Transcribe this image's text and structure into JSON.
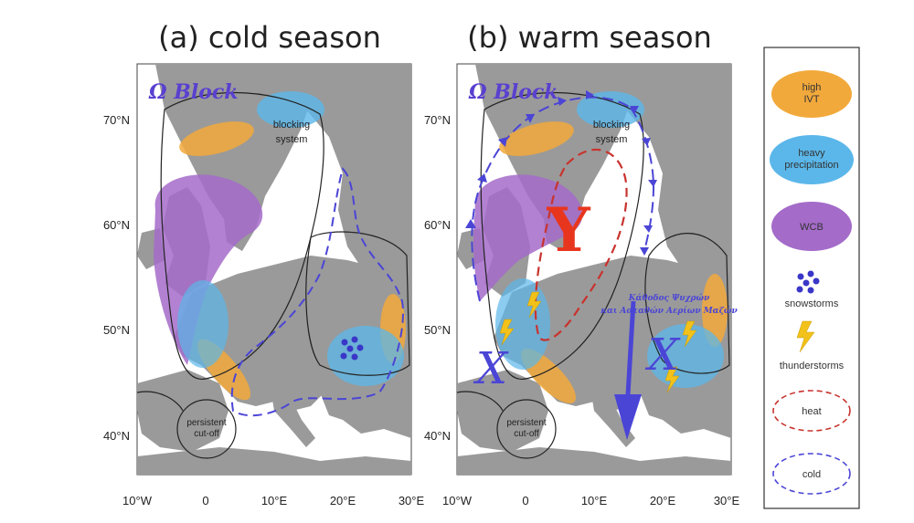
{
  "panels": [
    {
      "title": "(a) cold season",
      "block_label": "Ω Block",
      "blocking_label_1": "blocking",
      "blocking_label_2": "system",
      "cutoff_label_1": "persistent",
      "cutoff_label_2": "cut-off"
    },
    {
      "title": "(b) warm season",
      "block_label": "Ω Block",
      "blocking_label_1": "blocking",
      "blocking_label_2": "system",
      "cutoff_label_1": "persistent",
      "cutoff_label_2": "cut-off",
      "big_y": "Y",
      "x_left": "X",
      "x_right": "X",
      "greek_line_1": "Κάθοδος Ψυχρών",
      "greek_line_2": "και Ασταθών Αερίων Μαζών"
    }
  ],
  "axes": {
    "lat_ticks": [
      "70°N",
      "60°N",
      "50°N",
      "40°N"
    ],
    "lon_ticks_a": [
      "10°W",
      "0",
      "10°E",
      "20°E",
      "30°E"
    ],
    "lon_ticks_b": [
      "10°W",
      "0",
      "10°E",
      "20°E",
      "30°E"
    ]
  },
  "legend": {
    "items": [
      {
        "label_1": "high",
        "label_2": "IVT",
        "type": "ellipse",
        "color": "#F2A93B"
      },
      {
        "label_1": "heavy",
        "label_2": "precipitation",
        "type": "ellipse",
        "color": "#5BB7EA"
      },
      {
        "label_1": "WCB",
        "label_2": "",
        "type": "ellipse",
        "color": "#A46BC9"
      },
      {
        "label_1": "snowstorms",
        "label_2": "",
        "type": "icon",
        "icon": "snowflake-icon",
        "color": "#3A36C8"
      },
      {
        "label_1": "thunderstorms",
        "label_2": "",
        "type": "icon",
        "icon": "lightning-icon",
        "color": "#F2C21B"
      },
      {
        "label_1": "heat",
        "label_2": "",
        "type": "dashed",
        "color": "#C8332E"
      },
      {
        "label_1": "cold",
        "label_2": "",
        "type": "dashed",
        "color": "#4B45D6"
      }
    ]
  },
  "colors": {
    "land": "#9A9A9A",
    "sea": "#FFFFFF",
    "ivt": "#F2A93B",
    "precip": "#5BB7EA",
    "wcb": "#A46BC9",
    "cold": "#4B45D6",
    "heat": "#C8332E",
    "y_red": "#E8361E"
  }
}
